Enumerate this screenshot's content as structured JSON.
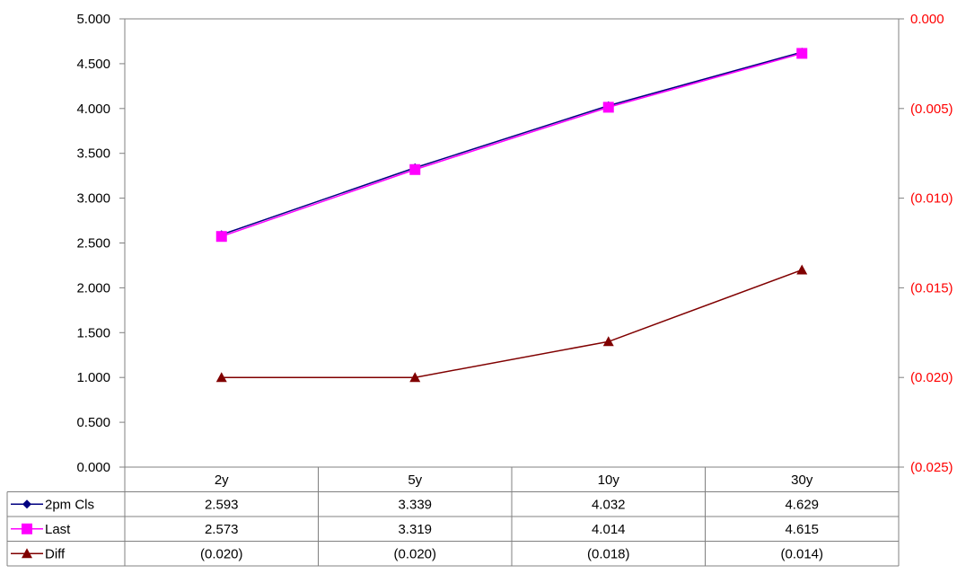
{
  "chart_data": {
    "type": "line",
    "categories": [
      "2y",
      "5y",
      "10y",
      "30y"
    ],
    "y_left": {
      "range": [
        0,
        5
      ],
      "ticks": [
        0,
        0.5,
        1,
        1.5,
        2,
        2.5,
        3,
        3.5,
        4,
        4.5,
        5
      ],
      "tick_labels": [
        "0.000",
        "0.500",
        "1.000",
        "1.500",
        "2.000",
        "2.500",
        "3.000",
        "3.500",
        "4.000",
        "4.500",
        "5.000"
      ]
    },
    "y_right": {
      "range": [
        -0.025,
        0
      ],
      "ticks": [
        -0.025,
        -0.02,
        -0.015,
        -0.01,
        -0.005,
        0
      ],
      "tick_labels": [
        "(0.025)",
        "(0.020)",
        "(0.015)",
        "(0.010)",
        "(0.005)",
        "0.000"
      ],
      "label_color": "#ff0000"
    },
    "grid": false,
    "legend": "data-table",
    "series": [
      {
        "name": "2pm Cls",
        "axis": "left",
        "values": [
          2.593,
          3.339,
          4.032,
          4.629
        ],
        "table_values": [
          "2.593",
          "3.339",
          "4.032",
          "4.629"
        ],
        "color": "#000080",
        "marker": "diamond"
      },
      {
        "name": "Last",
        "axis": "left",
        "values": [
          2.573,
          3.319,
          4.014,
          4.615
        ],
        "table_values": [
          "2.573",
          "3.319",
          "4.014",
          "4.615"
        ],
        "color": "#ff00ff",
        "marker": "square"
      },
      {
        "name": "Diff",
        "axis": "right",
        "values": [
          -0.02,
          -0.02,
          -0.018,
          -0.014
        ],
        "table_values": [
          "(0.020)",
          "(0.020)",
          "(0.018)",
          "(0.014)"
        ],
        "color": "#800000",
        "marker": "triangle"
      }
    ]
  }
}
